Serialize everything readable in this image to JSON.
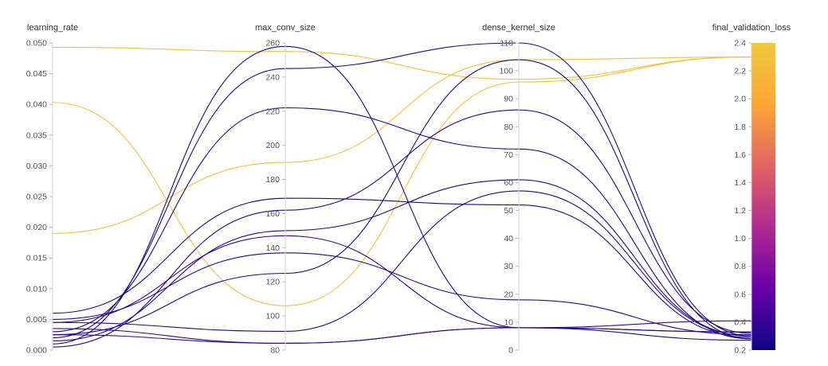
{
  "chart_data": {
    "type": "parallel_coordinates",
    "dimensions": [
      {
        "key": "learning_rate",
        "label": "learning_rate",
        "range": [
          0,
          0.05
        ],
        "ticks": [
          {
            "value": 0.0,
            "label": "0.000"
          },
          {
            "value": 0.005,
            "label": "0.005"
          },
          {
            "value": 0.01,
            "label": "0.010"
          },
          {
            "value": 0.015,
            "label": "0.015"
          },
          {
            "value": 0.02,
            "label": "0.020"
          },
          {
            "value": 0.025,
            "label": "0.025"
          },
          {
            "value": 0.03,
            "label": "0.030"
          },
          {
            "value": 0.035,
            "label": "0.035"
          },
          {
            "value": 0.04,
            "label": "0.040"
          },
          {
            "value": 0.045,
            "label": "0.045"
          },
          {
            "value": 0.05,
            "label": "0.050"
          }
        ]
      },
      {
        "key": "max_conv_size",
        "label": "max_conv_size",
        "range": [
          80,
          260
        ],
        "ticks": [
          {
            "value": 80,
            "label": "80"
          },
          {
            "value": 100,
            "label": "100"
          },
          {
            "value": 120,
            "label": "120"
          },
          {
            "value": 140,
            "label": "140"
          },
          {
            "value": 160,
            "label": "160"
          },
          {
            "value": 180,
            "label": "180"
          },
          {
            "value": 200,
            "label": "200"
          },
          {
            "value": 220,
            "label": "220"
          },
          {
            "value": 240,
            "label": "240"
          },
          {
            "value": 260,
            "label": "260"
          }
        ]
      },
      {
        "key": "dense_kernel_size",
        "label": "dense_kernel_size",
        "range": [
          0,
          110
        ],
        "ticks": [
          {
            "value": 0,
            "label": "0"
          },
          {
            "value": 10,
            "label": "10"
          },
          {
            "value": 20,
            "label": "20"
          },
          {
            "value": 30,
            "label": "30"
          },
          {
            "value": 40,
            "label": "40"
          },
          {
            "value": 50,
            "label": "50"
          },
          {
            "value": 60,
            "label": "60"
          },
          {
            "value": 70,
            "label": "70"
          },
          {
            "value": 80,
            "label": "80"
          },
          {
            "value": 90,
            "label": "90"
          },
          {
            "value": 100,
            "label": "100"
          },
          {
            "value": 110,
            "label": "110"
          }
        ]
      },
      {
        "key": "final_validation_loss",
        "label": "final_validation_loss",
        "range": [
          0.2,
          2.4
        ],
        "ticks": [
          {
            "value": 0.2,
            "label": "0.2"
          },
          {
            "value": 0.4,
            "label": "0.4"
          },
          {
            "value": 0.6,
            "label": "0.6"
          },
          {
            "value": 0.8,
            "label": "0.8"
          },
          {
            "value": 1.0,
            "label": "1.0"
          },
          {
            "value": 1.2,
            "label": "1.2"
          },
          {
            "value": 1.4,
            "label": "1.4"
          },
          {
            "value": 1.6,
            "label": "1.6"
          },
          {
            "value": 1.8,
            "label": "1.8"
          },
          {
            "value": 2.0,
            "label": "2.0"
          },
          {
            "value": 2.2,
            "label": "2.2"
          },
          {
            "value": 2.4,
            "label": "2.4"
          }
        ]
      }
    ],
    "color_scale": {
      "dimension": "final_validation_loss",
      "stops": [
        "#0d0887",
        "#6a00a8",
        "#b12a90",
        "#e16462",
        "#fca636",
        "#f0c93a"
      ]
    },
    "runs": [
      {
        "learning_rate": 0.0493,
        "max_conv_size": 255,
        "dense_kernel_size": 97,
        "final_validation_loss": 2.3
      },
      {
        "learning_rate": 0.0403,
        "max_conv_size": 106,
        "dense_kernel_size": 96,
        "final_validation_loss": 2.3
      },
      {
        "learning_rate": 0.019,
        "max_conv_size": 190,
        "dense_kernel_size": 104,
        "final_validation_loss": 2.3
      },
      {
        "learning_rate": 0.001,
        "max_conv_size": 258,
        "dense_kernel_size": 8,
        "final_validation_loss": 0.27
      },
      {
        "learning_rate": 0.002,
        "max_conv_size": 245,
        "dense_kernel_size": 110,
        "final_validation_loss": 0.3
      },
      {
        "learning_rate": 0.003,
        "max_conv_size": 222,
        "dense_kernel_size": 72,
        "final_validation_loss": 0.28
      },
      {
        "learning_rate": 0.0005,
        "max_conv_size": 162,
        "dense_kernel_size": 86,
        "final_validation_loss": 0.32
      },
      {
        "learning_rate": 0.006,
        "max_conv_size": 169,
        "dense_kernel_size": 52,
        "final_validation_loss": 0.29
      },
      {
        "learning_rate": 0.0045,
        "max_conv_size": 147,
        "dense_kernel_size": 8,
        "final_validation_loss": 0.33
      },
      {
        "learning_rate": 0.0015,
        "max_conv_size": 150,
        "dense_kernel_size": 61,
        "final_validation_loss": 0.3
      },
      {
        "learning_rate": 0.005,
        "max_conv_size": 137,
        "dense_kernel_size": 18,
        "final_validation_loss": 0.31
      },
      {
        "learning_rate": 0.0025,
        "max_conv_size": 125,
        "dense_kernel_size": 104,
        "final_validation_loss": 0.28
      },
      {
        "learning_rate": 0.0045,
        "max_conv_size": 91,
        "dense_kernel_size": 57,
        "final_validation_loss": 0.3
      },
      {
        "learning_rate": 0.0025,
        "max_conv_size": 84,
        "dense_kernel_size": 8,
        "final_validation_loss": 0.41
      },
      {
        "learning_rate": 0.0035,
        "max_conv_size": 84,
        "dense_kernel_size": 8,
        "final_validation_loss": 0.33
      }
    ]
  }
}
